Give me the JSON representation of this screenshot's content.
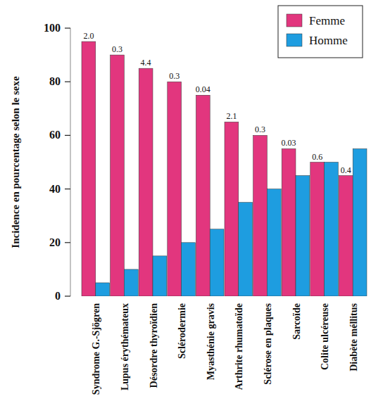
{
  "chart_data": {
    "type": "bar",
    "y_label": "Incidence  en pourcentage selon le sexe",
    "categories": [
      "Syndrome G.-Sjögren",
      "Lupus érythémateux",
      "Désordre thyroïdien",
      "Sclérodermie",
      "Myasthénie gravis",
      "Arthrite rhumatoïde",
      "Sclérose en plaques",
      "Sarcoïde",
      "Colite ulcéreuse",
      "Diabète méllitus"
    ],
    "series": [
      {
        "name": "Femme",
        "color": "#e2367e",
        "values": [
          95,
          90,
          85,
          80,
          75,
          65,
          60,
          55,
          50,
          45
        ]
      },
      {
        "name": "Homme",
        "color": "#1e9de0",
        "values": [
          5,
          10,
          15,
          20,
          25,
          35,
          40,
          45,
          50,
          55
        ]
      }
    ],
    "annotations": [
      "2.0",
      "0.3",
      "4.4",
      "0.3",
      "0.04",
      "2.1",
      "0.3",
      "0.03",
      "0.6",
      "0.4"
    ],
    "ylim": [
      0,
      100
    ],
    "yticks": [
      0,
      20,
      40,
      60,
      80,
      100
    ],
    "grid": false,
    "legend": "upper right"
  }
}
